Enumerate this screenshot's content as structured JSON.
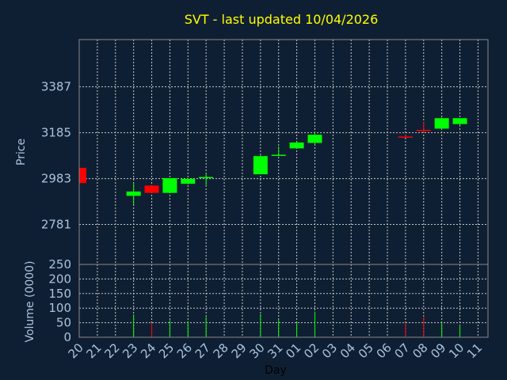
{
  "chart_data": {
    "type": "candlestick",
    "title": "SVT - last updated 10/04/2026",
    "xlabel": "Day",
    "ylabel": "Price",
    "volume_label": "Volume (0000)",
    "x_tick_labels": [
      "20",
      "21",
      "22",
      "23",
      "24",
      "25",
      "26",
      "27",
      "28",
      "29",
      "30",
      "31",
      "01",
      "02",
      "03",
      "04",
      "05",
      "06",
      "07",
      "08",
      "09",
      "10",
      "11"
    ],
    "price_ticks": [
      2781,
      2983,
      3185,
      3387
    ],
    "volume_ticks": [
      0,
      50,
      100,
      150,
      200,
      250
    ],
    "price_ylim": [
      2605,
      3595
    ],
    "volume_ylim": [
      0,
      250
    ],
    "grid": true,
    "colors": {
      "up": "#00ff00",
      "down": "#ff0000",
      "background": "#0f1f33",
      "title": "#ffff00",
      "axis_text": "#a9c4df",
      "xlabel": "#000000"
    },
    "candles": [
      {
        "day": "20",
        "index": 0,
        "open": 3030,
        "high": 3030,
        "low": 2963,
        "close": 2963
      },
      {
        "day": "23",
        "index": 3,
        "open": 2907,
        "high": 2963,
        "low": 2870,
        "close": 2926
      },
      {
        "day": "24",
        "index": 4,
        "open": 2952,
        "high": 2952,
        "low": 2920,
        "close": 2920
      },
      {
        "day": "25",
        "index": 5,
        "open": 2920,
        "high": 2985,
        "low": 2920,
        "close": 2985
      },
      {
        "day": "26",
        "index": 6,
        "open": 2960,
        "high": 2985,
        "low": 2958,
        "close": 2982
      },
      {
        "day": "27",
        "index": 7,
        "open": 2985,
        "high": 3007,
        "low": 2950,
        "close": 2990
      },
      {
        "day": "30",
        "index": 10,
        "open": 3002,
        "high": 3085,
        "low": 3002,
        "close": 3082
      },
      {
        "day": "31",
        "index": 11,
        "open": 3085,
        "high": 3124,
        "low": 3082,
        "close": 3088
      },
      {
        "day": "01",
        "index": 12,
        "open": 3116,
        "high": 3144,
        "low": 3116,
        "close": 3142
      },
      {
        "day": "02",
        "index": 13,
        "open": 3140,
        "high": 3191,
        "low": 3133,
        "close": 3176
      },
      {
        "day": "07",
        "index": 18,
        "open": 3168,
        "high": 3176,
        "low": 3163,
        "close": 3166
      },
      {
        "day": "08",
        "index": 19,
        "open": 3197,
        "high": 3233,
        "low": 3186,
        "close": 3195
      },
      {
        "day": "09",
        "index": 20,
        "open": 3203,
        "high": 3251,
        "low": 3203,
        "close": 3249
      },
      {
        "day": "10",
        "index": 21,
        "open": 3223,
        "high": 3249,
        "low": 3218,
        "close": 3249
      }
    ],
    "volumes": [
      {
        "day": "23",
        "index": 3,
        "value": 78,
        "direction": "up"
      },
      {
        "day": "24",
        "index": 4,
        "value": 50,
        "direction": "down"
      },
      {
        "day": "25",
        "index": 5,
        "value": 58,
        "direction": "up"
      },
      {
        "day": "26",
        "index": 6,
        "value": 55,
        "direction": "up"
      },
      {
        "day": "27",
        "index": 7,
        "value": 70,
        "direction": "up"
      },
      {
        "day": "30",
        "index": 10,
        "value": 80,
        "direction": "up"
      },
      {
        "day": "31",
        "index": 11,
        "value": 62,
        "direction": "up"
      },
      {
        "day": "01",
        "index": 12,
        "value": 52,
        "direction": "up"
      },
      {
        "day": "02",
        "index": 13,
        "value": 88,
        "direction": "up"
      },
      {
        "day": "07",
        "index": 18,
        "value": 50,
        "direction": "down"
      },
      {
        "day": "08",
        "index": 19,
        "value": 72,
        "direction": "down"
      },
      {
        "day": "09",
        "index": 20,
        "value": 52,
        "direction": "up"
      },
      {
        "day": "10",
        "index": 21,
        "value": 42,
        "direction": "up"
      }
    ]
  }
}
